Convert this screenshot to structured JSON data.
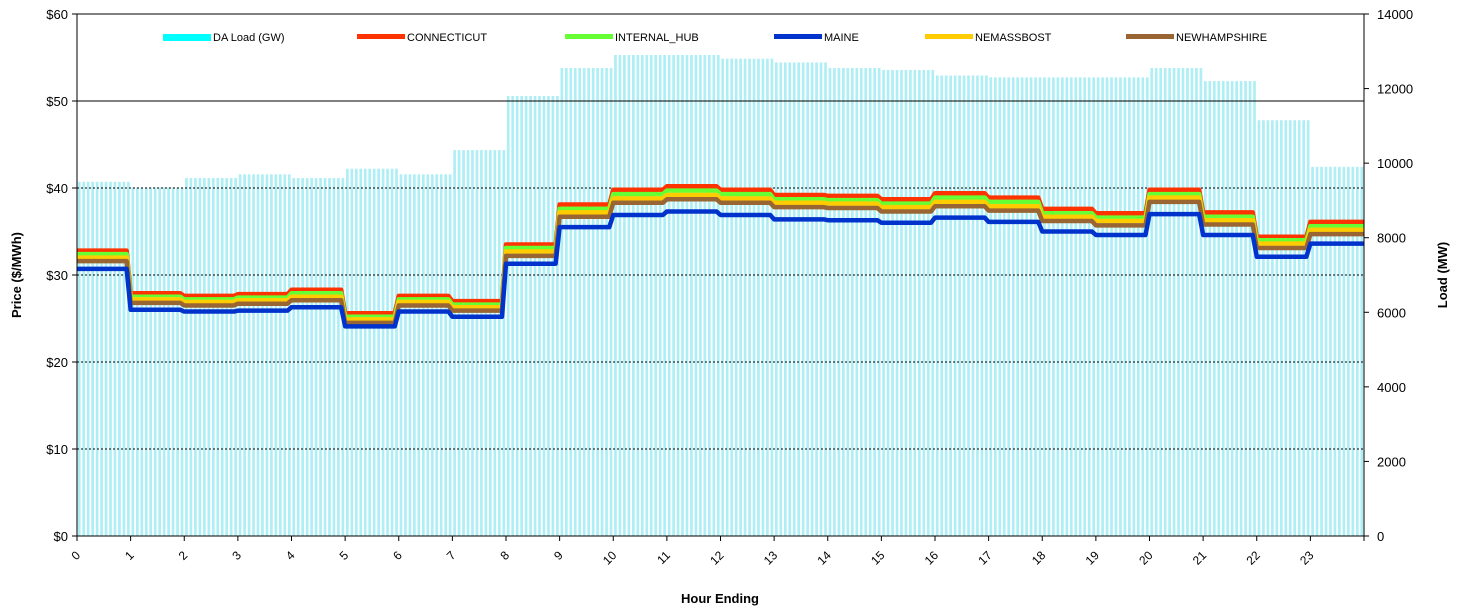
{
  "chart_data": {
    "type": "bar",
    "xlabel": "Hour Ending",
    "ylabel": "Price ($/MWh)",
    "y2label": "Load (MW)",
    "ylim": [
      0,
      60
    ],
    "y2lim": [
      0,
      14000
    ],
    "xlim": [
      0,
      24
    ],
    "grid": "horizontal dashed on left axis",
    "legend_position": "top",
    "y_ticks": [
      "$0",
      "$10",
      "$20",
      "$30",
      "$40",
      "$50",
      "$60"
    ],
    "y2_ticks": [
      "0",
      "2000",
      "4000",
      "6000",
      "8000",
      "10000",
      "12000",
      "14000"
    ],
    "x_ticks": [
      "0",
      "1",
      "2",
      "3",
      "4",
      "5",
      "6",
      "7",
      "8",
      "9",
      "10",
      "11",
      "12",
      "13",
      "14",
      "15",
      "16",
      "17",
      "18",
      "19",
      "20",
      "21",
      "22",
      "23"
    ],
    "hours": [
      0,
      1,
      2,
      3,
      4,
      5,
      6,
      7,
      8,
      9,
      10,
      11,
      12,
      13,
      14,
      15,
      16,
      17,
      18,
      19,
      20,
      21,
      22,
      23
    ],
    "load": {
      "name": "DA Load (GW)",
      "color": "#00ffff",
      "values": [
        9500,
        9350,
        9600,
        9700,
        9600,
        9850,
        9700,
        10350,
        11800,
        12550,
        12900,
        12900,
        12800,
        12700,
        12550,
        12500,
        12350,
        12300,
        12300,
        12300,
        12550,
        12200,
        11150,
        9900
      ]
    },
    "series": [
      {
        "name": "CONNECTICUT",
        "color": "#ff3300",
        "values": [
          32.8,
          27.9,
          27.6,
          27.8,
          28.3,
          25.6,
          27.6,
          27.0,
          33.5,
          38.1,
          39.8,
          40.2,
          39.8,
          39.2,
          39.1,
          38.7,
          39.4,
          38.9,
          37.6,
          37.1,
          39.8,
          37.2,
          34.4,
          36.1
        ]
      },
      {
        "name": "INTERNAL_HUB",
        "color": "#66ff33",
        "values": [
          32.4,
          27.5,
          27.2,
          27.4,
          27.9,
          25.2,
          27.2,
          26.6,
          33.1,
          37.6,
          39.3,
          39.7,
          39.3,
          38.7,
          38.6,
          38.2,
          38.9,
          38.4,
          37.1,
          36.6,
          39.3,
          36.7,
          34.0,
          35.6
        ]
      },
      {
        "name": "MAINE",
        "color": "#0033cc",
        "values": [
          30.7,
          26.0,
          25.8,
          25.9,
          26.3,
          24.1,
          25.8,
          25.2,
          31.3,
          35.5,
          36.9,
          37.3,
          36.9,
          36.4,
          36.3,
          36.0,
          36.6,
          36.1,
          35.0,
          34.6,
          37.0,
          34.6,
          32.1,
          33.6
        ]
      },
      {
        "name": "NEMASSBOST",
        "color": "#ffcc00",
        "values": [
          32.0,
          27.2,
          26.9,
          27.1,
          27.5,
          24.9,
          26.9,
          26.3,
          32.7,
          37.2,
          38.8,
          39.2,
          38.8,
          38.3,
          38.2,
          37.8,
          38.4,
          37.9,
          36.7,
          36.2,
          38.9,
          36.3,
          33.6,
          35.2
        ]
      },
      {
        "name": "NEWHAMPSHIRE",
        "color": "#996633",
        "values": [
          31.6,
          26.8,
          26.5,
          26.7,
          27.1,
          24.5,
          26.5,
          25.9,
          32.2,
          36.7,
          38.3,
          38.7,
          38.3,
          37.8,
          37.7,
          37.3,
          37.9,
          37.4,
          36.2,
          35.7,
          38.4,
          35.8,
          33.1,
          34.7
        ]
      }
    ]
  }
}
